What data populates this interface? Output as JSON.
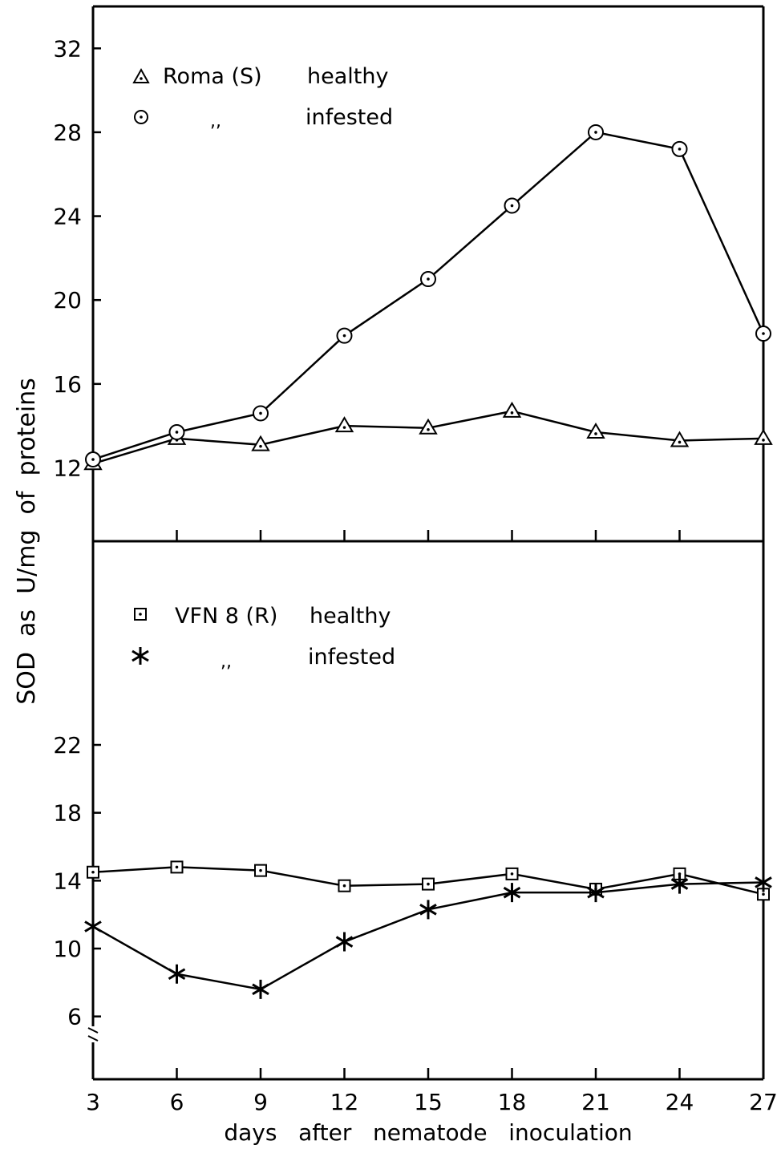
{
  "chart_data": [
    {
      "type": "line",
      "panel": "top",
      "title": "",
      "x": [
        3,
        6,
        9,
        12,
        15,
        18,
        21,
        24,
        27
      ],
      "ylim": [
        8.5,
        34
      ],
      "y_ticks": [
        "12",
        "16",
        "20",
        "24",
        "28",
        "32"
      ],
      "grid": false,
      "legend_position": "top-left",
      "series": [
        {
          "name": "healthy",
          "marker": "triangle",
          "values": [
            12.2,
            13.4,
            13.1,
            14.0,
            13.9,
            14.7,
            13.7,
            13.3,
            13.4
          ]
        },
        {
          "name": "infested",
          "marker": "circle",
          "values": [
            12.4,
            13.7,
            14.6,
            18.3,
            21.0,
            24.5,
            28.0,
            27.2,
            18.4
          ]
        }
      ],
      "legend": [
        {
          "label": "Roma (S)",
          "status": "healthy",
          "marker": "triangle"
        },
        {
          "label": ",,",
          "status": "infested",
          "marker": "circle"
        }
      ]
    },
    {
      "type": "line",
      "panel": "bottom",
      "title": "",
      "x": [
        3,
        6,
        9,
        12,
        15,
        18,
        21,
        24,
        27
      ],
      "ylim": [
        2.3,
        34
      ],
      "y_ticks": [
        "6",
        "10",
        "14",
        "18",
        "22"
      ],
      "axis_break": true,
      "grid": false,
      "legend_position": "top-left",
      "series": [
        {
          "name": "healthy",
          "marker": "square",
          "values": [
            14.5,
            14.8,
            14.6,
            13.7,
            13.8,
            14.4,
            13.5,
            14.4,
            13.2
          ]
        },
        {
          "name": "infested",
          "marker": "asterisk",
          "values": [
            11.3,
            8.5,
            7.6,
            10.4,
            12.3,
            13.3,
            13.3,
            13.8,
            13.9
          ]
        }
      ],
      "legend": [
        {
          "label": "VFN 8 (R)",
          "status": "healthy",
          "marker": "square"
        },
        {
          "label": ",,",
          "status": "infested",
          "marker": "asterisk"
        }
      ]
    }
  ],
  "x_ticks": [
    "3",
    "6",
    "9",
    "12",
    "15",
    "18",
    "21",
    "24",
    "27"
  ],
  "xlabel": "days   after   nematode   inoculation",
  "ylabel": "SOD  as  U/mg  of  proteins"
}
